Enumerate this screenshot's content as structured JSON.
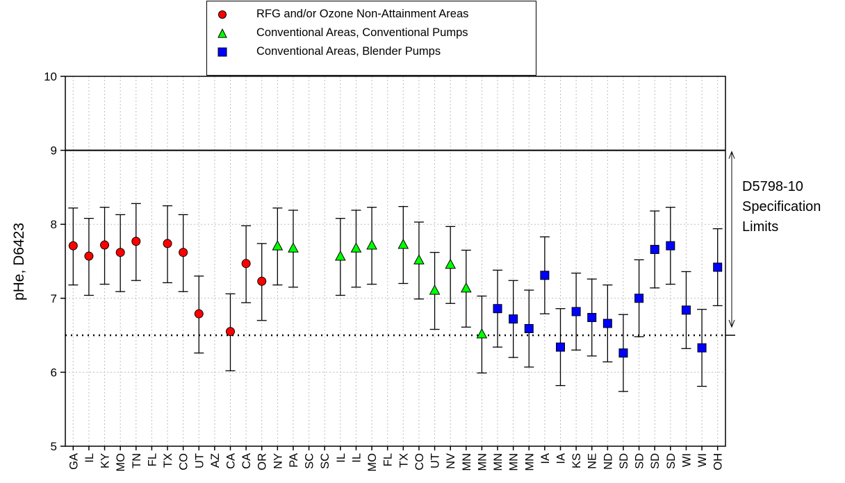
{
  "chart_data": {
    "type": "scatter",
    "ylabel": "pHe, D6423",
    "ylim": [
      5,
      10
    ],
    "yticks": [
      "5",
      "6",
      "7",
      "8",
      "9",
      "10"
    ],
    "grid": true,
    "legend_position": "top-center",
    "categories": [
      "GA",
      "IL",
      "KY",
      "MO",
      "TN",
      "FL",
      "TX",
      "CO",
      "UT",
      "AZ",
      "CA",
      "CA",
      "OR",
      "NY",
      "PA",
      "SC",
      "SC",
      "IL",
      "IL",
      "MO",
      "FL",
      "TX",
      "CO",
      "UT",
      "NV",
      "MN",
      "MN",
      "MN",
      "MN",
      "MN",
      "IA",
      "IA",
      "KS",
      "NE",
      "ND",
      "SD",
      "SD",
      "SD",
      "SD",
      "WI",
      "WI",
      "OH"
    ],
    "series": [
      {
        "name": "RFG and/or Ozone Non-Attainment Areas",
        "marker": "circle",
        "color": "#ff0000",
        "points": [
          {
            "x": "GA",
            "index": 0,
            "y": 7.71,
            "low": 7.18,
            "high": 8.22
          },
          {
            "x": "IL",
            "index": 1,
            "y": 7.57,
            "low": 7.04,
            "high": 8.08
          },
          {
            "x": "KY",
            "index": 2,
            "y": 7.72,
            "low": 7.19,
            "high": 8.23
          },
          {
            "x": "MO",
            "index": 3,
            "y": 7.62,
            "low": 7.09,
            "high": 8.13
          },
          {
            "x": "TN",
            "index": 4,
            "y": 7.77,
            "low": 7.24,
            "high": 8.28
          },
          {
            "x": "TX",
            "index": 6,
            "y": 7.74,
            "low": 7.21,
            "high": 8.25
          },
          {
            "x": "CO",
            "index": 7,
            "y": 7.62,
            "low": 7.09,
            "high": 8.13
          },
          {
            "x": "UT",
            "index": 8,
            "y": 6.79,
            "low": 6.26,
            "high": 7.3
          },
          {
            "x": "CA",
            "index": 10,
            "y": 6.55,
            "low": 6.02,
            "high": 7.06
          },
          {
            "x": "CA",
            "index": 11,
            "y": 7.47,
            "low": 6.94,
            "high": 7.98
          },
          {
            "x": "OR",
            "index": 12,
            "y": 7.23,
            "low": 6.7,
            "high": 7.74
          }
        ]
      },
      {
        "name": "Conventional Areas, Conventional Pumps",
        "marker": "triangle",
        "color": "#00ff00",
        "points": [
          {
            "x": "NY",
            "index": 13,
            "y": 7.71,
            "low": 7.18,
            "high": 8.22
          },
          {
            "x": "PA",
            "index": 14,
            "y": 7.68,
            "low": 7.15,
            "high": 8.19
          },
          {
            "x": "IL",
            "index": 17,
            "y": 7.57,
            "low": 7.04,
            "high": 8.08
          },
          {
            "x": "IL",
            "index": 18,
            "y": 7.68,
            "low": 7.15,
            "high": 8.19
          },
          {
            "x": "MO",
            "index": 19,
            "y": 7.72,
            "low": 7.19,
            "high": 8.23
          },
          {
            "x": "TX",
            "index": 21,
            "y": 7.73,
            "low": 7.2,
            "high": 8.24
          },
          {
            "x": "CO",
            "index": 22,
            "y": 7.52,
            "low": 6.99,
            "high": 8.03
          },
          {
            "x": "UT",
            "index": 23,
            "y": 7.11,
            "low": 6.58,
            "high": 7.62
          },
          {
            "x": "NV",
            "index": 24,
            "y": 7.46,
            "low": 6.93,
            "high": 7.97
          },
          {
            "x": "MN",
            "index": 25,
            "y": 7.14,
            "low": 6.61,
            "high": 7.65
          },
          {
            "x": "MN",
            "index": 26,
            "y": 6.52,
            "low": 5.99,
            "high": 7.03
          }
        ]
      },
      {
        "name": "Conventional Areas, Blender Pumps",
        "marker": "square",
        "color": "#0000ff",
        "points": [
          {
            "x": "MN",
            "index": 27,
            "y": 6.86,
            "low": 6.34,
            "high": 7.38
          },
          {
            "x": "MN",
            "index": 28,
            "y": 6.72,
            "low": 6.2,
            "high": 7.24
          },
          {
            "x": "MN",
            "index": 29,
            "y": 6.59,
            "low": 6.07,
            "high": 7.11
          },
          {
            "x": "IA",
            "index": 30,
            "y": 7.31,
            "low": 6.79,
            "high": 7.83
          },
          {
            "x": "IA",
            "index": 31,
            "y": 6.34,
            "low": 5.82,
            "high": 6.86
          },
          {
            "x": "KS",
            "index": 32,
            "y": 6.82,
            "low": 6.3,
            "high": 7.34
          },
          {
            "x": "NE",
            "index": 33,
            "y": 6.74,
            "low": 6.22,
            "high": 7.26
          },
          {
            "x": "ND",
            "index": 34,
            "y": 6.66,
            "low": 6.14,
            "high": 7.18
          },
          {
            "x": "SD",
            "index": 35,
            "y": 6.26,
            "low": 5.74,
            "high": 6.78
          },
          {
            "x": "SD",
            "index": 36,
            "y": 7.0,
            "low": 6.48,
            "high": 7.52
          },
          {
            "x": "SD",
            "index": 37,
            "y": 7.66,
            "low": 7.14,
            "high": 8.18
          },
          {
            "x": "SD",
            "index": 38,
            "y": 7.71,
            "low": 7.19,
            "high": 8.23
          },
          {
            "x": "WI",
            "index": 39,
            "y": 6.84,
            "low": 6.32,
            "high": 7.36
          },
          {
            "x": "WI",
            "index": 40,
            "y": 6.33,
            "low": 5.81,
            "high": 6.85
          },
          {
            "x": "OH",
            "index": 41,
            "y": 7.42,
            "low": 6.9,
            "high": 7.94
          }
        ]
      }
    ],
    "reference_lines": [
      {
        "y": 9.0,
        "style": "solid"
      },
      {
        "y": 6.5,
        "style": "dotted"
      }
    ],
    "annotation": {
      "lines": [
        "D5798-10",
        "Specification",
        "Limits"
      ],
      "range": [
        6.5,
        9.0
      ]
    }
  }
}
